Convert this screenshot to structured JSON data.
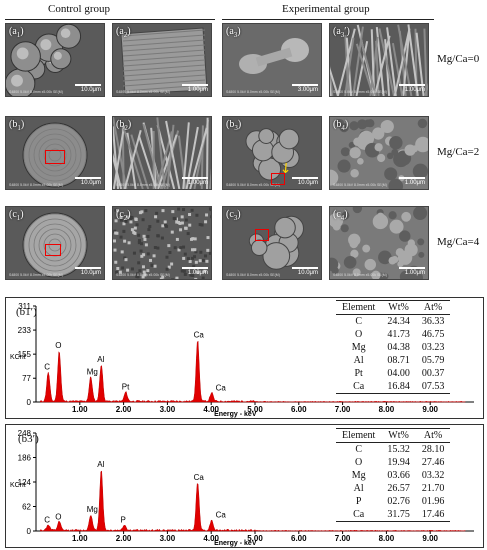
{
  "headers": {
    "control": "Control group",
    "experimental": "Experimental group"
  },
  "rows": [
    {
      "label": "Mg/Ca=0",
      "panels": [
        {
          "letter": "a",
          "sub": "1",
          "prime": false,
          "scale": "10.0μm",
          "texture": "spheres"
        },
        {
          "letter": "a",
          "sub": "2",
          "prime": false,
          "scale": "1.00μm",
          "texture": "plate"
        },
        {
          "letter": "a",
          "sub": "3",
          "prime": false,
          "scale": "3.00μm",
          "texture": "dumbbell"
        },
        {
          "letter": "a",
          "sub": "3",
          "prime": true,
          "scale": "1.00μm",
          "texture": "fibers"
        }
      ]
    },
    {
      "label": "Mg/Ca=2",
      "panels": [
        {
          "letter": "b",
          "sub": "1",
          "prime": false,
          "scale": "10.0μm",
          "texture": "ball"
        },
        {
          "letter": "b",
          "sub": "2",
          "prime": false,
          "scale": "1.00μm",
          "texture": "needles"
        },
        {
          "letter": "b",
          "sub": "3",
          "prime": false,
          "scale": "10.0μm",
          "texture": "cluster"
        },
        {
          "letter": "b",
          "sub": "4",
          "prime": false,
          "scale": "1.00μm",
          "texture": "sponge"
        }
      ]
    },
    {
      "label": "Mg/Ca=4",
      "panels": [
        {
          "letter": "c",
          "sub": "1",
          "prime": false,
          "scale": "10.0μm",
          "texture": "shell"
        },
        {
          "letter": "c",
          "sub": "2",
          "prime": false,
          "scale": "1.00μm",
          "texture": "granular"
        },
        {
          "letter": "c",
          "sub": "3",
          "prime": false,
          "scale": "10.0μm",
          "texture": "blob"
        },
        {
          "letter": "c",
          "sub": "4",
          "prime": false,
          "scale": "1.00μm",
          "texture": "nodules"
        }
      ]
    }
  ],
  "sem_meta": "S4800 5.0kV 8.0mm x5.00k SE(M)",
  "chart_data": [
    {
      "type": "line",
      "panel_label": "(b1′)",
      "xlabel": "Energy - keV",
      "ylabel": "KCnt",
      "yticks": [
        0,
        77,
        155,
        233,
        311
      ],
      "xticks": [
        "1.00",
        "2.00",
        "3.00",
        "4.00",
        "5.00",
        "6.00",
        "7.00",
        "8.00",
        "9.00"
      ],
      "xlim": [
        0,
        10
      ],
      "ylim": [
        0,
        311
      ],
      "peaks": [
        {
          "el": "C",
          "x": 0.28,
          "y": 95
        },
        {
          "el": "O",
          "x": 0.53,
          "y": 165
        },
        {
          "el": "Mg",
          "x": 1.25,
          "y": 80
        },
        {
          "el": "Al",
          "x": 1.49,
          "y": 120
        },
        {
          "el": "Pt",
          "x": 2.05,
          "y": 30
        },
        {
          "el": "Ca",
          "x": 3.69,
          "y": 200
        },
        {
          "el": "Ca",
          "x": 4.01,
          "y": 28
        }
      ],
      "table": {
        "columns": [
          "Element",
          "Wt%",
          "At%"
        ],
        "rows": [
          [
            "C",
            "24.34",
            "36.33"
          ],
          [
            "O",
            "41.73",
            "46.75"
          ],
          [
            "Mg",
            "04.38",
            "03.23"
          ],
          [
            "Al",
            "08.71",
            "05.79"
          ],
          [
            "Pt",
            "04.00",
            "00.37"
          ],
          [
            "Ca",
            "16.84",
            "07.53"
          ]
        ]
      }
    },
    {
      "type": "line",
      "panel_label": "(b3′)",
      "xlabel": "Energy - keV",
      "ylabel": "KCnt",
      "yticks": [
        0,
        62,
        124,
        186,
        248
      ],
      "xticks": [
        "1.00",
        "2.00",
        "3.00",
        "4.00",
        "5.00",
        "6.00",
        "7.00",
        "8.00",
        "9.00"
      ],
      "xlim": [
        0,
        10
      ],
      "ylim": [
        0,
        248
      ],
      "peaks": [
        {
          "el": "C",
          "x": 0.28,
          "y": 14
        },
        {
          "el": "O",
          "x": 0.53,
          "y": 22
        },
        {
          "el": "Mg",
          "x": 1.25,
          "y": 40
        },
        {
          "el": "Al",
          "x": 1.49,
          "y": 155
        },
        {
          "el": "P",
          "x": 2.02,
          "y": 14
        },
        {
          "el": "Ca",
          "x": 3.69,
          "y": 122
        },
        {
          "el": "Ca",
          "x": 4.01,
          "y": 26
        }
      ],
      "table": {
        "columns": [
          "Element",
          "Wt%",
          "At%"
        ],
        "rows": [
          [
            "C",
            "15.32",
            "28.10"
          ],
          [
            "O",
            "19.94",
            "27.46"
          ],
          [
            "Mg",
            "03.66",
            "03.32"
          ],
          [
            "Al",
            "26.57",
            "21.70"
          ],
          [
            "P",
            "02.76",
            "01.96"
          ],
          [
            "Ca",
            "31.75",
            "17.46"
          ]
        ]
      }
    }
  ]
}
